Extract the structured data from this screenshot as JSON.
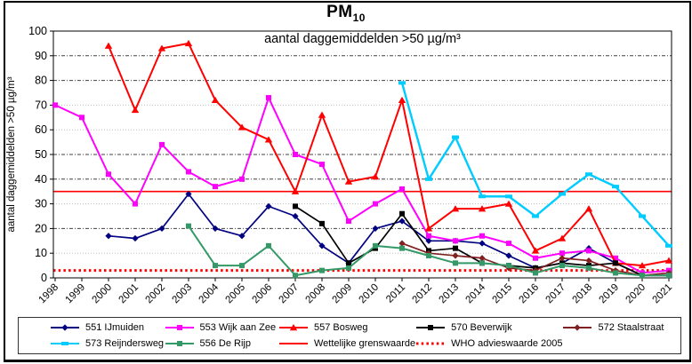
{
  "title": {
    "main": "PM",
    "sub": "10"
  },
  "chart_data": {
    "type": "line",
    "inner_title": "aantal daggemiddelden >50 µg/m³",
    "ylabel": "aantal daggemiddelden >50 µg/m³",
    "xlabel": "",
    "ylim": [
      0,
      100
    ],
    "ytick_step": 10,
    "grid": true,
    "legend_position": "bottom",
    "categories": [
      1998,
      1999,
      2000,
      2001,
      2002,
      2003,
      2004,
      2005,
      2006,
      2007,
      2008,
      2009,
      2010,
      2011,
      2012,
      2013,
      2014,
      2015,
      2016,
      2017,
      2018,
      2019,
      2020,
      2021
    ],
    "series": [
      {
        "name": "551 IJmuiden",
        "color": "#000080",
        "marker": "diamond",
        "values": [
          null,
          null,
          17,
          16,
          20,
          34,
          20,
          17,
          29,
          25,
          13,
          6,
          20,
          23,
          15,
          15,
          14,
          9,
          4,
          6,
          12,
          6,
          1,
          1
        ]
      },
      {
        "name": "553 Wijk aan Zee",
        "color": "#FF00FF",
        "marker": "square",
        "values": [
          70,
          65,
          42,
          30,
          54,
          43,
          37,
          40,
          73,
          50,
          46,
          23,
          30,
          36,
          17,
          15,
          17,
          14,
          8,
          10,
          11,
          8,
          2,
          3
        ]
      },
      {
        "name": "557 Bosweg",
        "color": "#FF0000",
        "marker": "triangle",
        "values": [
          null,
          null,
          94,
          68,
          93,
          95,
          72,
          61,
          56,
          35,
          66,
          39,
          41,
          72,
          20,
          28,
          28,
          30,
          11,
          16,
          28,
          6,
          5,
          7
        ]
      },
      {
        "name": "570 Beverwijk",
        "color": "#000000",
        "marker": "square",
        "values": [
          null,
          null,
          null,
          null,
          null,
          null,
          null,
          null,
          null,
          29,
          22,
          6,
          12,
          26,
          11,
          12,
          6,
          5,
          4,
          6,
          5,
          6,
          1,
          1
        ]
      },
      {
        "name": "572 Staalstraat",
        "color": "#802020",
        "marker": "diamond",
        "values": [
          null,
          null,
          null,
          null,
          null,
          null,
          null,
          null,
          null,
          null,
          null,
          null,
          null,
          14,
          10,
          9,
          8,
          4,
          3,
          8,
          7,
          3,
          1,
          2
        ]
      },
      {
        "name": "573 Reijndersweg",
        "color": "#00CCFF",
        "marker": "dash",
        "values": [
          null,
          null,
          null,
          null,
          null,
          null,
          null,
          null,
          null,
          null,
          null,
          null,
          null,
          79,
          40,
          57,
          33,
          33,
          25,
          34,
          42,
          37,
          25,
          13
        ]
      },
      {
        "name": "556 De Rijp",
        "color": "#339966",
        "marker": "square",
        "values": [
          null,
          null,
          null,
          null,
          null,
          21,
          5,
          5,
          13,
          1,
          3,
          4,
          13,
          12,
          9,
          6,
          6,
          5,
          2,
          5,
          4,
          2,
          1,
          1
        ]
      }
    ],
    "reference_lines": [
      {
        "name": "Wettelijke grenswaarde",
        "value": 35,
        "color": "#FF0000",
        "style": "solid"
      },
      {
        "name": "WHO advieswaarde 2005",
        "value": 3,
        "color": "#FF0000",
        "style": "dotted"
      }
    ]
  }
}
